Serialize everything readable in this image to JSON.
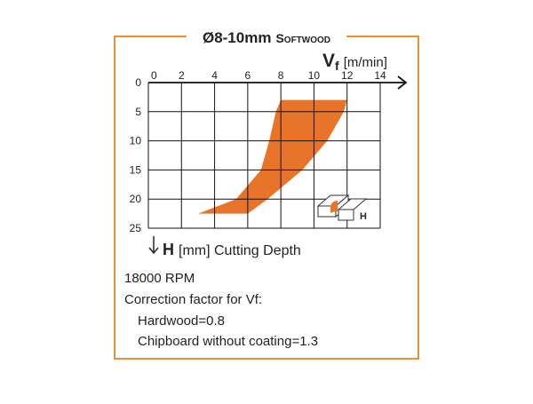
{
  "chart_data": {
    "type": "area",
    "title": {
      "main": "Ø8-10mm",
      "sub": "Softwood"
    },
    "x_label": {
      "symbol": "V",
      "subscript": "f",
      "unit": "[m/min]"
    },
    "y_label": {
      "symbol": "H",
      "unit": "[mm] Cutting Depth"
    },
    "y": [
      3,
      5,
      10,
      15,
      20,
      22.5
    ],
    "series": [
      {
        "color": "#e8742a",
        "values": [
          8,
          7.7,
          7.3,
          6.8,
          5.3,
          3
        ]
      },
      {
        "color": "#e8742a",
        "values": [
          12,
          11.8,
          10.8,
          9.3,
          7.2,
          6
        ]
      }
    ],
    "xlim": [
      0,
      14
    ],
    "xticks": [
      0,
      2,
      4,
      6,
      8,
      10,
      12,
      14
    ],
    "ylim": [
      0,
      25
    ],
    "yticks": [
      0,
      5,
      10,
      15,
      20,
      25
    ],
    "grid": true,
    "icon_label": "H",
    "notes": [
      "18000 RPM",
      "Correction factor for Vf:",
      "Hardwood=0.8",
      "Chipboard without coating=1.3"
    ]
  }
}
